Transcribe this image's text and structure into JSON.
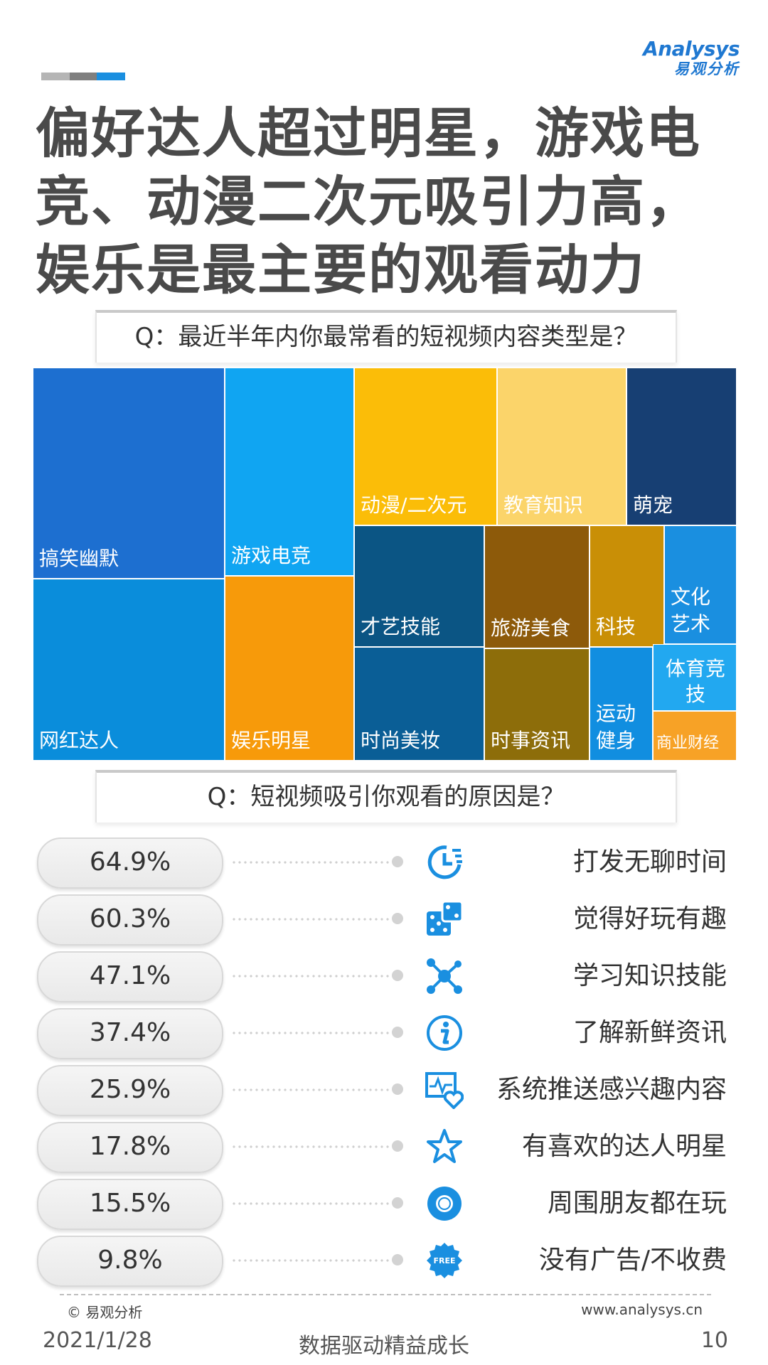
{
  "brand": {
    "logo_en": "Analysys",
    "logo_cn": "易观分析"
  },
  "title_lines": [
    "偏好达人超过明星，游戏电",
    "竞、动漫二次元吸引力高，",
    "娱乐是最主要的观看动力"
  ],
  "q1": "Q：最近半年内你最常看的短视频内容类型是？",
  "q2": "Q：短视频吸引你观看的原因是？",
  "colors": {
    "blue_dark": "#1d6fd0",
    "blue_mid": "#0a8ddb",
    "blue_light": "#10a5f2",
    "orange": "#f79a0a",
    "yellow": "#fbbd08",
    "yellow_light": "#fbd46a",
    "navy": "#173f73",
    "teal_dark": "#0b5584",
    "steel": "#0a5e96",
    "brown": "#8d5a0a",
    "olive": "#8d6d0a",
    "gold": "#c98f06",
    "sky": "#118ee0",
    "sky_light": "#22a8f0",
    "orange_light": "#f7a226",
    "accent": "#1a8fe0"
  },
  "chart_data": {
    "type": "treemap",
    "title": "Q：最近半年内你最常看的短视频内容类型是？",
    "items": [
      {
        "label": "搞笑幽默",
        "rank": 1
      },
      {
        "label": "网红达人",
        "rank": 2
      },
      {
        "label": "游戏电竞",
        "rank": 3
      },
      {
        "label": "娱乐明星",
        "rank": 4
      },
      {
        "label": "动漫/二次元",
        "rank": 5
      },
      {
        "label": "教育知识",
        "rank": 6
      },
      {
        "label": "萌宠",
        "rank": 7
      },
      {
        "label": "才艺技能",
        "rank": 8
      },
      {
        "label": "时尚美妆",
        "rank": 9
      },
      {
        "label": "旅游美食",
        "rank": 10
      },
      {
        "label": "时事资讯",
        "rank": 11
      },
      {
        "label": "科技",
        "rank": 12
      },
      {
        "label": "运动健身",
        "rank": 13
      },
      {
        "label": "文化艺术",
        "rank": 14
      },
      {
        "label": "体育竞技",
        "rank": 15
      },
      {
        "label": "商业财经",
        "rank": 16
      }
    ]
  },
  "reasons": [
    {
      "value": "64.9%",
      "label": "打发无聊时间",
      "icon": "clock-icon"
    },
    {
      "value": "60.3%",
      "label": "觉得好玩有趣",
      "icon": "dice-icon"
    },
    {
      "value": "47.1%",
      "label": "学习知识技能",
      "icon": "molecule-icon"
    },
    {
      "value": "37.4%",
      "label": "了解新鲜资讯",
      "icon": "info-icon"
    },
    {
      "value": "25.9%",
      "label": "系统推送感兴趣内容",
      "icon": "monitor-heart-icon"
    },
    {
      "value": "17.8%",
      "label": "有喜欢的达人明星",
      "icon": "star-icon"
    },
    {
      "value": "15.5%",
      "label": "周围朋友都在玩",
      "icon": "ring-icon"
    },
    {
      "value": "9.8%",
      "label": "没有广告/不收费",
      "icon": "free-badge-icon"
    }
  ],
  "footer": {
    "copyright": "© 易观分析",
    "site": "www.analysys.cn",
    "date": "2021/1/28",
    "slogan": "数据驱动精益成长",
    "page": "10"
  }
}
